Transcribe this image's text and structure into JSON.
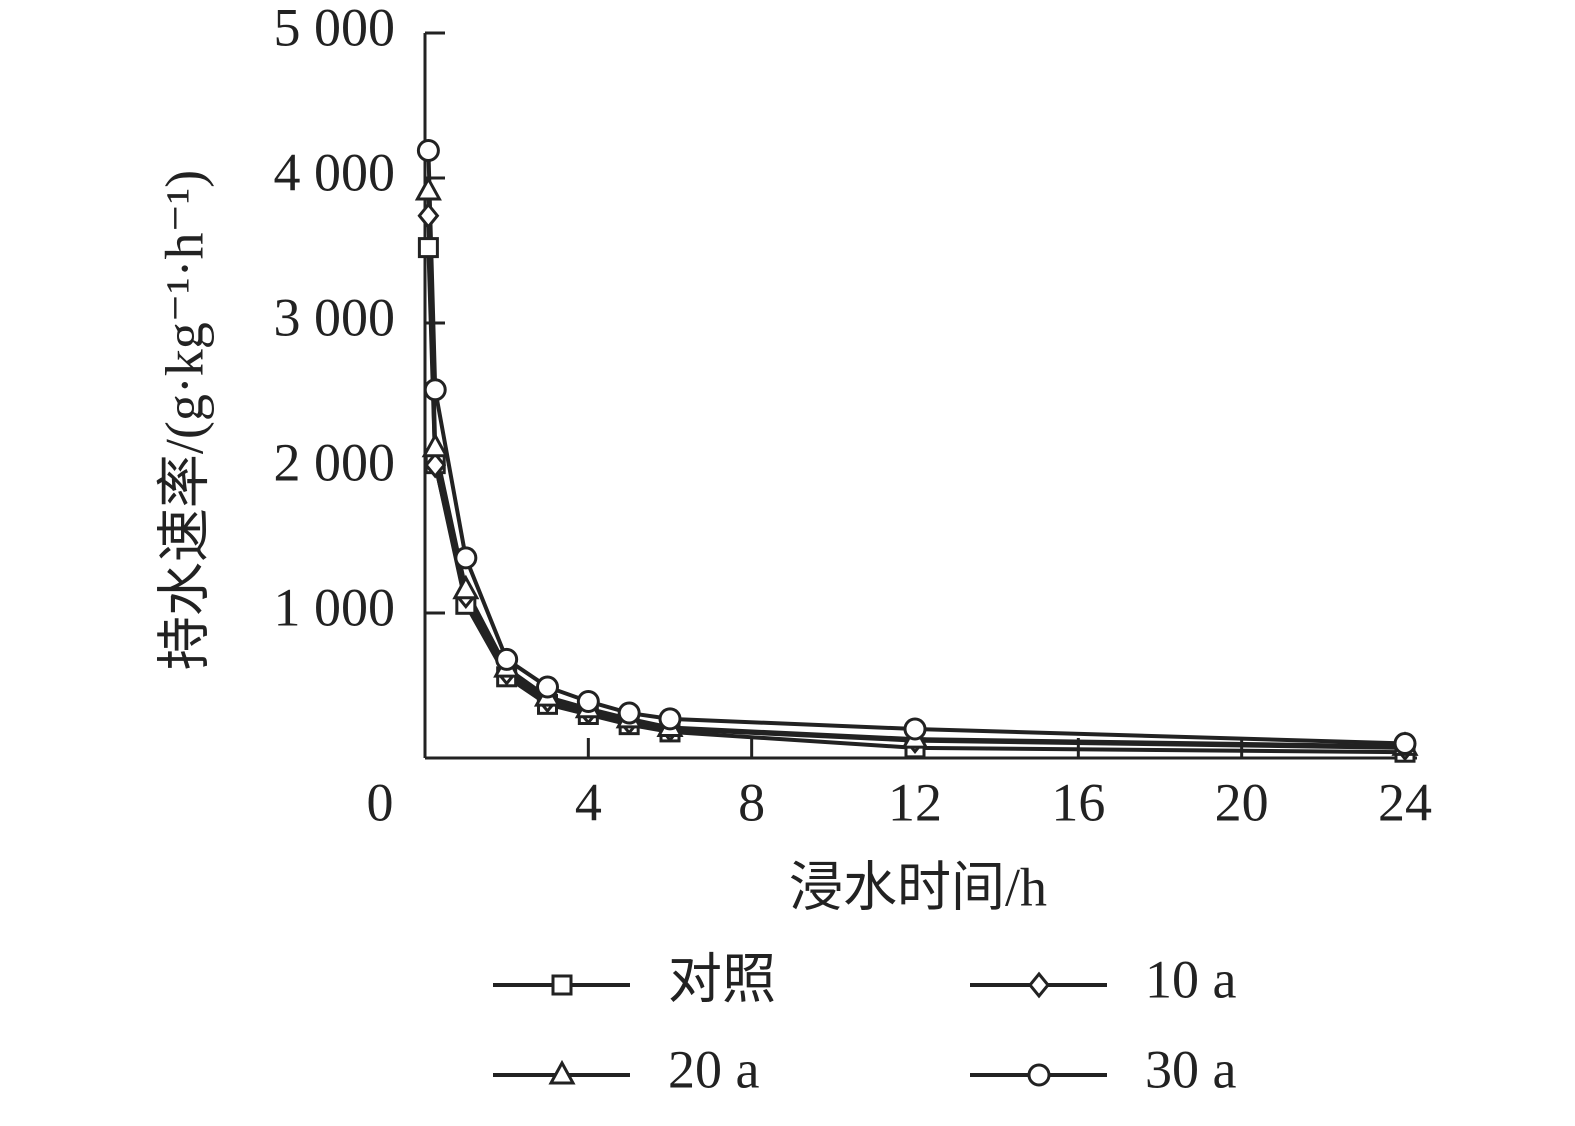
{
  "chart_data": {
    "type": "line",
    "x_label": "浸水时间/h",
    "y_label": "持水速率/(g·kg⁻¹·h⁻¹)",
    "xlim": [
      0,
      24
    ],
    "xticks": [
      0,
      4,
      8,
      12,
      16,
      20,
      24
    ],
    "ylim": [
      0,
      5000
    ],
    "yticks": [
      {
        "value": 1000,
        "label": "1 000"
      },
      {
        "value": 2000,
        "label": "2 000"
      },
      {
        "value": 3000,
        "label": "3 000"
      },
      {
        "value": 4000,
        "label": "4 000"
      },
      {
        "value": 5000,
        "label": "5 000"
      }
    ],
    "x": [
      0.083,
      0.25,
      1,
      2,
      3,
      4,
      5,
      6,
      12,
      24
    ],
    "series": [
      {
        "name": "对照",
        "color": "#222222",
        "marker": "square",
        "values": [
          3520,
          2030,
          1060,
          560,
          370,
          300,
          230,
          180,
          70,
          40
        ]
      },
      {
        "name": "10 a",
        "color": "#222222",
        "marker": "diamond",
        "values": [
          3740,
          2020,
          1120,
          590,
          400,
          320,
          250,
          200,
          120,
          70
        ]
      },
      {
        "name": "20 a",
        "color": "#222222",
        "marker": "triangle",
        "values": [
          3910,
          2140,
          1160,
          620,
          420,
          340,
          270,
          210,
          130,
          80
        ]
      },
      {
        "name": "30 a",
        "color": "#222222",
        "marker": "circle",
        "values": [
          4190,
          2540,
          1380,
          680,
          490,
          390,
          310,
          270,
          200,
          100
        ]
      }
    ]
  }
}
